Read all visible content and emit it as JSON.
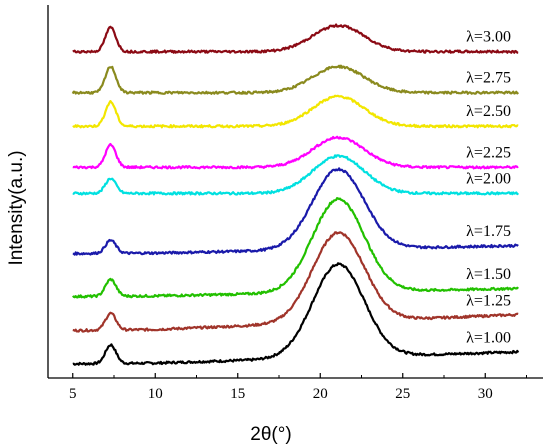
{
  "chart_data": {
    "type": "line",
    "title": "",
    "xlabel": "2θ(°)",
    "ylabel": "Intensity(a.u.)",
    "xlim": [
      3.5,
      33.5
    ],
    "ylim": [
      0,
      1
    ],
    "xticks": [
      "5",
      "10",
      "15",
      "20",
      "25",
      "30"
    ],
    "yticks_shown": false,
    "grid": false,
    "legend": "inline labels at right",
    "y_units_note": "arbitrary units; curves vertically offset",
    "series": [
      {
        "name": "λ=1.00",
        "color": "#000000",
        "baseline": 0.04,
        "peak1": 0.05,
        "peak2": 0.25,
        "slope": 0.03
      },
      {
        "name": "λ=1.25",
        "color": "#a0342a",
        "baseline": 0.13,
        "peak1": 0.045,
        "peak2": 0.24,
        "slope": 0.04
      },
      {
        "name": "λ=1.50",
        "color": "#22c000",
        "baseline": 0.22,
        "peak1": 0.045,
        "peak2": 0.25,
        "slope": 0.02
      },
      {
        "name": "λ=1.75",
        "color": "#1a1aaa",
        "baseline": 0.335,
        "peak1": 0.035,
        "peak2": 0.215,
        "slope": 0.02
      },
      {
        "name": "λ=2.00",
        "color": "#00e0e0",
        "baseline": 0.495,
        "peak1": 0.04,
        "peak2": 0.1,
        "slope": 0.0
      },
      {
        "name": "λ=2.25",
        "color": "#ff00ff",
        "baseline": 0.565,
        "peak1": 0.06,
        "peak2": 0.08,
        "slope": 0.0
      },
      {
        "name": "λ=2.50",
        "color": "#f2e600",
        "baseline": 0.675,
        "peak1": 0.065,
        "peak2": 0.08,
        "slope": 0.0
      },
      {
        "name": "λ=2.75",
        "color": "#8a8a1e",
        "baseline": 0.765,
        "peak1": 0.07,
        "peak2": 0.07,
        "slope": 0.0
      },
      {
        "name": "λ=3.00",
        "color": "#8b0a14",
        "baseline": 0.875,
        "peak1": 0.065,
        "peak2": 0.07,
        "slope": 0.0
      }
    ]
  }
}
